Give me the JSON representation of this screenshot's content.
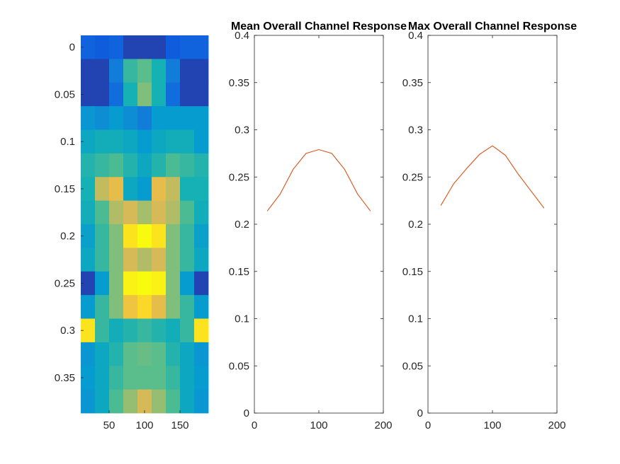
{
  "chart_data": [
    {
      "type": "heatmap",
      "title": "",
      "xlabel": "",
      "ylabel": "",
      "x_tick_labels": [
        "50",
        "100",
        "150"
      ],
      "y_tick_labels": [
        "0",
        "0.05",
        "0.1",
        "0.15",
        "0.2",
        "0.25",
        "0.3",
        "0.35"
      ],
      "x_ticks": [
        50,
        100,
        150
      ],
      "y_ticks": [
        0,
        0.05,
        0.1,
        0.15,
        0.2,
        0.25,
        0.3,
        0.35
      ],
      "x_centers": [
        20,
        40,
        60,
        80,
        100,
        120,
        140,
        160,
        180
      ],
      "y_centers": [
        0,
        0.025,
        0.05,
        0.075,
        0.1,
        0.125,
        0.15,
        0.175,
        0.2,
        0.225,
        0.25,
        0.275,
        0.3,
        0.325,
        0.35,
        0.375
      ],
      "xlim": [
        10,
        190
      ],
      "ylim": [
        -0.0125,
        0.3875
      ],
      "y_reversed": true,
      "colormap": "parula",
      "values": [
        [
          0.12,
          0.1,
          0.12,
          0.05,
          0.05,
          0.05,
          0.1,
          0.12,
          0.12
        ],
        [
          0.05,
          0.05,
          0.2,
          0.45,
          0.5,
          0.4,
          0.2,
          0.05,
          0.05
        ],
        [
          0.05,
          0.05,
          0.15,
          0.4,
          0.55,
          0.4,
          0.15,
          0.05,
          0.05
        ],
        [
          0.28,
          0.25,
          0.3,
          0.25,
          0.2,
          0.3,
          0.3,
          0.3,
          0.3
        ],
        [
          0.35,
          0.38,
          0.38,
          0.35,
          0.3,
          0.35,
          0.38,
          0.38,
          0.3
        ],
        [
          0.42,
          0.45,
          0.48,
          0.42,
          0.35,
          0.42,
          0.48,
          0.45,
          0.42
        ],
        [
          0.4,
          0.65,
          0.72,
          0.35,
          0.3,
          0.72,
          0.65,
          0.4,
          0.4
        ],
        [
          0.38,
          0.48,
          0.62,
          0.68,
          0.6,
          0.68,
          0.62,
          0.48,
          0.38
        ],
        [
          0.32,
          0.45,
          0.55,
          0.85,
          0.98,
          0.85,
          0.55,
          0.45,
          0.32
        ],
        [
          0.35,
          0.45,
          0.55,
          0.68,
          0.62,
          0.68,
          0.55,
          0.45,
          0.35
        ],
        [
          0.05,
          0.3,
          0.55,
          0.88,
          1.0,
          0.88,
          0.55,
          0.3,
          0.05
        ],
        [
          0.3,
          0.45,
          0.55,
          0.75,
          0.82,
          0.72,
          0.55,
          0.45,
          0.3
        ],
        [
          0.85,
          0.45,
          0.38,
          0.42,
          0.45,
          0.42,
          0.38,
          0.45,
          0.85
        ],
        [
          0.28,
          0.35,
          0.42,
          0.5,
          0.52,
          0.5,
          0.42,
          0.35,
          0.28
        ],
        [
          0.3,
          0.35,
          0.45,
          0.5,
          0.5,
          0.5,
          0.45,
          0.35,
          0.3
        ],
        [
          0.28,
          0.35,
          0.48,
          0.58,
          0.68,
          0.58,
          0.48,
          0.35,
          0.28
        ]
      ]
    },
    {
      "type": "line",
      "title": "Mean Overall Channel Response",
      "xlabel": "",
      "ylabel": "",
      "xlim": [
        0,
        200
      ],
      "ylim": [
        0,
        0.4
      ],
      "x_ticks": [
        0,
        100,
        200
      ],
      "y_ticks": [
        0,
        0.05,
        0.1,
        0.15,
        0.2,
        0.25,
        0.3,
        0.35,
        0.4
      ],
      "x_tick_labels": [
        "0",
        "100",
        "200"
      ],
      "y_tick_labels": [
        "0",
        "0.05",
        "0.1",
        "0.15",
        "0.2",
        "0.25",
        "0.3",
        "0.35",
        "0.4"
      ],
      "series": [
        {
          "color": "#d95319",
          "x": [
            20,
            40,
            60,
            80,
            100,
            120,
            140,
            160,
            180
          ],
          "y": [
            0.214,
            0.232,
            0.258,
            0.275,
            0.279,
            0.275,
            0.258,
            0.232,
            0.214
          ]
        }
      ]
    },
    {
      "type": "line",
      "title": "Max Overall Channel Response",
      "xlabel": "",
      "ylabel": "",
      "xlim": [
        0,
        200
      ],
      "ylim": [
        0,
        0.4
      ],
      "x_ticks": [
        0,
        100,
        200
      ],
      "y_ticks": [
        0,
        0.05,
        0.1,
        0.15,
        0.2,
        0.25,
        0.3,
        0.35,
        0.4
      ],
      "x_tick_labels": [
        "0",
        "100",
        "200"
      ],
      "y_tick_labels": [
        "0",
        "0.05",
        "0.1",
        "0.15",
        "0.2",
        "0.25",
        "0.3",
        "0.35",
        "0.4"
      ],
      "series": [
        {
          "color": "#d95319",
          "x": [
            20,
            40,
            60,
            80,
            100,
            120,
            140,
            160,
            180
          ],
          "y": [
            0.22,
            0.243,
            0.259,
            0.274,
            0.283,
            0.273,
            0.253,
            0.235,
            0.217
          ]
        }
      ]
    }
  ]
}
